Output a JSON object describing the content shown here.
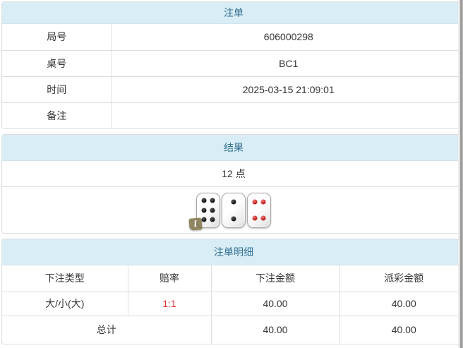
{
  "bet_slip": {
    "title": "注单",
    "rows": [
      {
        "label": "局号",
        "value": "606000298"
      },
      {
        "label": "桌号",
        "value": "BC1"
      },
      {
        "label": "时间",
        "value": "2025-03-15 21:09:01"
      },
      {
        "label": "备注",
        "value": ""
      }
    ]
  },
  "result": {
    "title": "结果",
    "points": "12 点",
    "dice": [
      {
        "value": 6,
        "color": "black"
      },
      {
        "value": 2,
        "color": "black"
      },
      {
        "value": 4,
        "color": "red"
      }
    ],
    "info_badge_label": "i"
  },
  "bet_details": {
    "title": "注单明细",
    "columns": [
      "下注类型",
      "赔率",
      "下注金额",
      "派彩金额"
    ],
    "rows": [
      {
        "bet_type": "大/小(大)",
        "odds": "1:1",
        "bet_amount": "40.00",
        "payout_amount": "40.00"
      }
    ],
    "total": {
      "label": "总计",
      "bet_amount": "40.00",
      "payout_amount": "40.00"
    }
  },
  "colors": {
    "panel_header_bg": "#d9edf7",
    "panel_header_text": "#31708f",
    "cell_border": "#dddddd",
    "odds_red": "#e03333",
    "pip_black": "#111111",
    "pip_red": "#bb1111",
    "badge_olive": "#7d7246"
  }
}
